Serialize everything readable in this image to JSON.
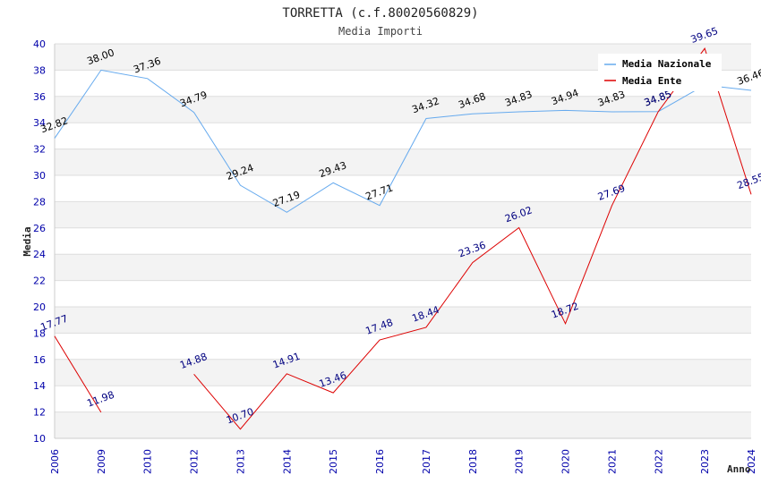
{
  "chart_data": {
    "type": "line",
    "title": "TORRETTA (c.f.80020560829)",
    "subtitle": "Media Importi",
    "xlabel": "Anno",
    "ylabel": "Media",
    "ylim": [
      10,
      40
    ],
    "yticks": [
      10,
      12,
      14,
      16,
      18,
      20,
      22,
      24,
      26,
      28,
      30,
      32,
      34,
      36,
      38,
      40
    ],
    "categories": [
      "2006",
      "2009",
      "2010",
      "2012",
      "2013",
      "2014",
      "2015",
      "2016",
      "2017",
      "2018",
      "2019",
      "2020",
      "2021",
      "2022",
      "2023",
      "2024"
    ],
    "grid": "horizontal bands",
    "legend_position": "top-right",
    "series": [
      {
        "name": "Media Nazionale",
        "color": "#66aaee",
        "values": [
          32.82,
          38.0,
          37.36,
          34.79,
          29.24,
          27.19,
          29.43,
          27.71,
          34.32,
          34.68,
          34.83,
          34.94,
          34.83,
          34.85,
          36.86,
          36.46
        ],
        "labels": [
          "32.82",
          "38.00",
          "37.36",
          "34.79",
          "29.24",
          "27.19",
          "29.43",
          "27.71",
          "34.32",
          "34.68",
          "34.83",
          "34.94",
          "34.83",
          "34.85",
          "",
          "36.46"
        ]
      },
      {
        "name": "Media Ente",
        "color": "#dd0000",
        "values": [
          17.77,
          11.98,
          null,
          14.88,
          10.7,
          14.91,
          13.46,
          17.48,
          18.44,
          23.36,
          26.02,
          18.72,
          27.69,
          34.85,
          39.65,
          28.55
        ],
        "labels": [
          "17.77",
          "11.98",
          "",
          "14.88",
          "10.70",
          "14.91",
          "13.46",
          "17.48",
          "18.44",
          "23.36",
          "26.02",
          "18.72",
          "27.69",
          "34.85",
          "39.65",
          "28.55"
        ]
      }
    ]
  }
}
